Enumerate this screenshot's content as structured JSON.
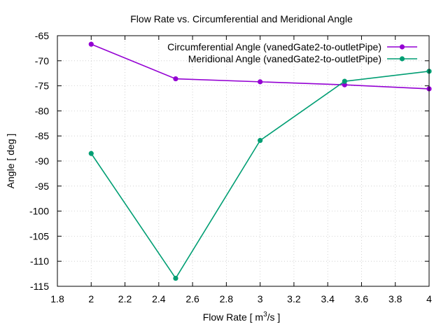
{
  "chart_data": {
    "type": "line",
    "title": "Flow Rate vs. Circumferential and Meridional Angle",
    "xlabel_main": "Flow Rate [ m",
    "xlabel_sup": "3",
    "xlabel_tail": "/s ]",
    "ylabel": "Angle [ deg ]",
    "xlim": [
      1.8,
      4.0
    ],
    "ylim": [
      -115,
      -65
    ],
    "xticks": [
      "1.8",
      "2",
      "2.2",
      "2.4",
      "2.6",
      "2.8",
      "3",
      "3.2",
      "3.4",
      "3.6",
      "3.8",
      "4"
    ],
    "yticks": [
      "-65",
      "-70",
      "-75",
      "-80",
      "-85",
      "-90",
      "-95",
      "-100",
      "-105",
      "-110",
      "-115"
    ],
    "grid": true,
    "legend_position": "top-right",
    "x": [
      2.0,
      2.5,
      3.0,
      3.5,
      4.0
    ],
    "series": [
      {
        "name": "Circumferential Angle (vanedGate2-to-outletPipe)",
        "color": "#9400d3",
        "values": [
          -66.7,
          -73.6,
          -74.2,
          -74.8,
          -75.6
        ]
      },
      {
        "name": "Meridional Angle (vanedGate2-to-outletPipe)",
        "color": "#009e73",
        "values": [
          -88.5,
          -113.4,
          -85.9,
          -74.1,
          -72.1
        ]
      }
    ]
  }
}
